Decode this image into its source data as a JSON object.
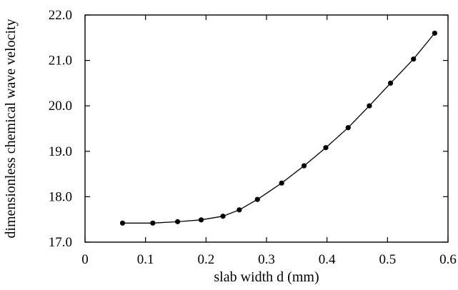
{
  "chart_data": {
    "type": "line",
    "title": "",
    "xlabel": "slab width d (mm)",
    "ylabel": "dimensionless chemical wave velocity",
    "xlim": [
      0,
      0.6
    ],
    "ylim": [
      17.0,
      22.0
    ],
    "x_ticks": [
      0,
      0.1,
      0.2,
      0.3,
      0.4,
      0.5,
      0.6
    ],
    "x_tick_labels": [
      "0",
      "0.1",
      "0.2",
      "0.3",
      "0.4",
      "0.5",
      "0.6"
    ],
    "y_ticks": [
      17.0,
      18.0,
      19.0,
      20.0,
      21.0,
      22.0
    ],
    "y_tick_labels": [
      "17.0",
      "18.0",
      "19.0",
      "20.0",
      "21.0",
      "22.0"
    ],
    "grid": false,
    "legend": "none",
    "series": [
      {
        "marker": "filled-circle",
        "color": "#000000",
        "x": [
          0.062,
          0.112,
          0.153,
          0.192,
          0.228,
          0.255,
          0.285,
          0.325,
          0.362,
          0.398,
          0.435,
          0.47,
          0.505,
          0.543,
          0.578
        ],
        "y": [
          17.42,
          17.42,
          17.45,
          17.49,
          17.57,
          17.71,
          17.94,
          18.3,
          18.68,
          19.08,
          19.52,
          20.0,
          20.5,
          21.03,
          21.6
        ]
      }
    ]
  }
}
